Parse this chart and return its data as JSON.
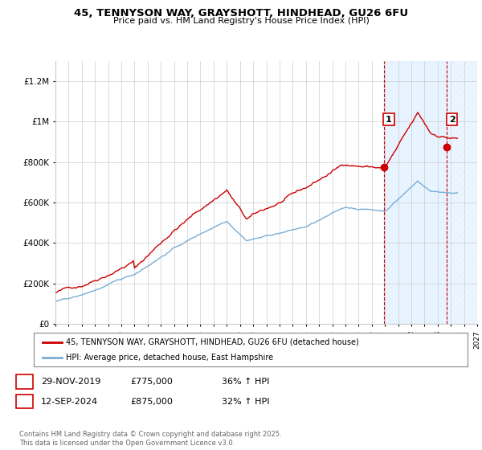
{
  "title": "45, TENNYSON WAY, GRAYSHOTT, HINDHEAD, GU26 6FU",
  "subtitle": "Price paid vs. HM Land Registry's House Price Index (HPI)",
  "xlim_year": [
    1995,
    2027
  ],
  "ylim": [
    0,
    1300000
  ],
  "yticks": [
    0,
    200000,
    400000,
    600000,
    800000,
    1000000,
    1200000
  ],
  "ytick_labels": [
    "£0",
    "£200K",
    "£400K",
    "£600K",
    "£800K",
    "£1M",
    "£1.2M"
  ],
  "xtick_years": [
    1995,
    1996,
    1997,
    1998,
    1999,
    2000,
    2001,
    2002,
    2003,
    2004,
    2005,
    2006,
    2007,
    2008,
    2009,
    2010,
    2011,
    2012,
    2013,
    2014,
    2015,
    2016,
    2017,
    2018,
    2019,
    2020,
    2021,
    2022,
    2023,
    2024,
    2025,
    2026,
    2027
  ],
  "purchase1_year": 2019.91,
  "purchase1_price": 775000,
  "purchase2_year": 2024.71,
  "purchase2_price": 875000,
  "red_color": "#cc0000",
  "blue_color": "#7aadd4",
  "shade_color_light": "#ddeeff",
  "shade_color_hatch": "#c8d8ee",
  "grid_color": "#cccccc",
  "bg_color": "#ffffff",
  "legend_label_red": "45, TENNYSON WAY, GRAYSHOTT, HINDHEAD, GU26 6FU (detached house)",
  "legend_label_blue": "HPI: Average price, detached house, East Hampshire",
  "footer": "Contains HM Land Registry data © Crown copyright and database right 2025.\nThis data is licensed under the Open Government Licence v3.0.",
  "table_row1": [
    "1",
    "29-NOV-2019",
    "£775,000",
    "36% ↑ HPI"
  ],
  "table_row2": [
    "2",
    "12-SEP-2024",
    "£875,000",
    "32% ↑ HPI"
  ]
}
